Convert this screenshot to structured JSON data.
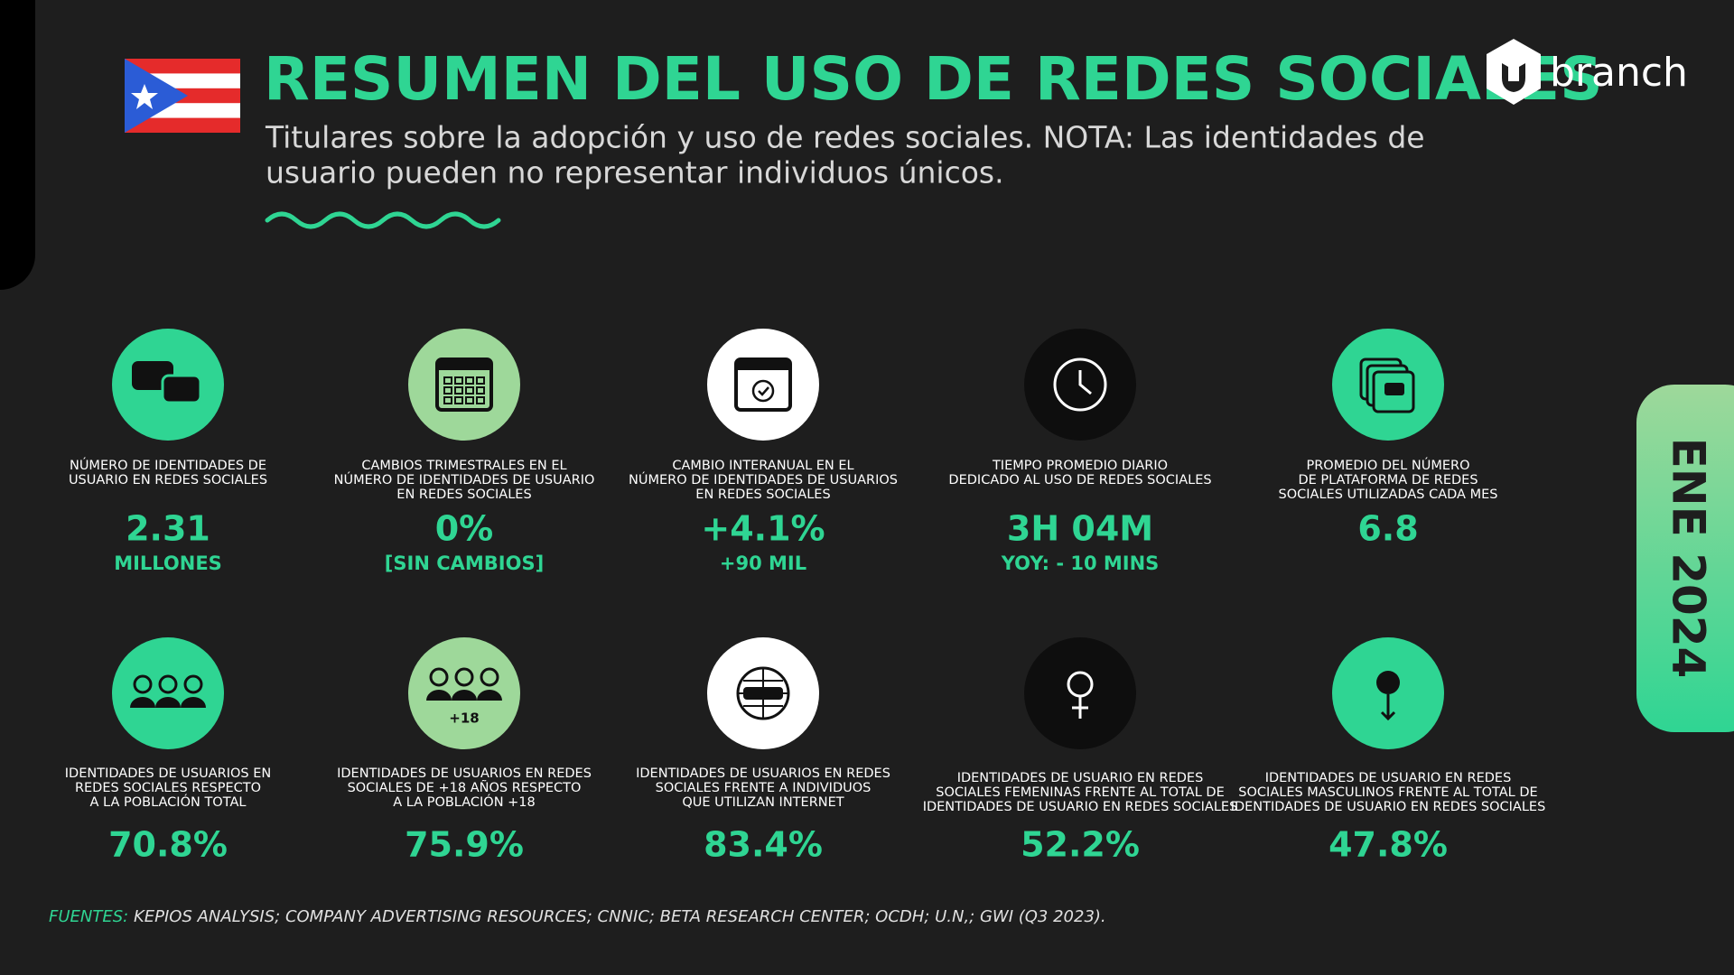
{
  "header": {
    "title": "RESUMEN DEL USO DE REDES SOCIALES",
    "subtitle": [
      "Titulares sobre la adopción y uso de redes sociales. NOTA: Las identidades de",
      "usuario pueden no representar individuos únicos."
    ]
  },
  "brand": "branch",
  "date_tab": "ENE 2024",
  "stats": [
    [
      {
        "label": [
          "NÚMERO DE IDENTIDADES DE",
          "USUARIO EN REDES SOCIALES"
        ],
        "value": "2.31",
        "sub": "MILLONES"
      },
      {
        "label": [
          "CAMBIOS TRIMESTRALES EN EL",
          "NÚMERO DE IDENTIDADES DE USUARIO",
          "EN REDES SOCIALES"
        ],
        "value": "0%",
        "sub": "[SIN CAMBIOS]"
      },
      {
        "label": [
          "CAMBIO INTERANUAL EN EL",
          "NÚMERO DE IDENTIDADES DE USUARIOS",
          "EN REDES SOCIALES"
        ],
        "value": "+4.1%",
        "sub": "+90 MIL"
      },
      {
        "label": [
          "TIEMPO PROMEDIO DIARIO",
          "DEDICADO AL USO DE REDES SOCIALES"
        ],
        "value": "3H 04M",
        "sub": "YOY: - 10 MINS"
      },
      {
        "label": [
          "PROMEDIO DEL NÚMERO",
          "DE PLATAFORMA DE REDES",
          "SOCIALES UTILIZADAS CADA MES"
        ],
        "value": "6.8"
      }
    ],
    [
      {
        "label": [
          "IDENTIDADES DE USUARIOS EN",
          "REDES SOCIALES RESPECTO",
          "A LA POBLACIÓN TOTAL"
        ],
        "value": "70.8%"
      },
      {
        "icon_label": "+18",
        "label": [
          "IDENTIDADES DE USUARIOS EN REDES",
          "SOCIALES  DE +18 AÑOS RESPECTO",
          "A LA POBLACIÓN  +18"
        ],
        "value": "75.9%"
      },
      {
        "label": [
          "IDENTIDADES DE USUARIOS EN REDES",
          "SOCIALES FRENTE A INDIVIDUOS",
          "QUE UTILIZAN INTERNET"
        ],
        "value": "83.4%"
      },
      {
        "label": [
          "IDENTIDADES DE USUARIO EN REDES",
          "SOCIALES FEMENINAS FRENTE AL TOTAL DE",
          "IDENTIDADES DE USUARIO EN REDES SOCIALES"
        ],
        "value": "52.2%"
      },
      {
        "label": [
          "IDENTIDADES DE USUARIO EN REDES",
          "SOCIALES MASCULINOS FRENTE AL TOTAL DE",
          "IDENTIDADES DE USUARIO EN REDES SOCIALES"
        ],
        "value": "47.8%"
      }
    ]
  ],
  "sources": {
    "label": "FUENTES:",
    "text": " KEPIOS ANALYSIS; COMPANY ADVERTISING RESOURCES; CNNIC; BETA RESEARCH CENTER; OCDH; U.N,; GWI (Q3 2023)."
  }
}
